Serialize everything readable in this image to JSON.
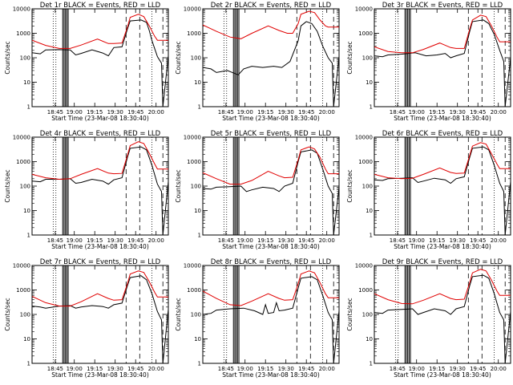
{
  "figure": {
    "background": "#ffffff",
    "black_color": "#000000",
    "red_color": "#e00000"
  },
  "chart_data": [
    {
      "type": "line",
      "title": "Det 1r BLACK = Events, RED = LLD",
      "xlabel": "Start Time (23-Mar-08 18:30:40)",
      "ylabel": "Counts/sec",
      "x_ticks": [
        "18:45",
        "19:00",
        "19:15",
        "19:30",
        "19:45",
        "20:00"
      ],
      "y_ticks": [
        "1",
        "10",
        "100",
        "1000",
        "10000"
      ],
      "yscale": "log",
      "ylim": [
        1,
        10000
      ],
      "series": [
        {
          "color": "#000000",
          "x": [
            0.0,
            0.06,
            0.1,
            0.2,
            0.28,
            0.32,
            0.36,
            0.44,
            0.52,
            0.56,
            0.6,
            0.66,
            0.7,
            0.72,
            0.8,
            0.84,
            0.86,
            0.88,
            0.92,
            0.95,
            0.96,
            1.0
          ],
          "y": [
            160,
            145,
            210,
            215,
            210,
            130,
            150,
            210,
            155,
            120,
            260,
            280,
            1500,
            3200,
            3500,
            2800,
            1300,
            500,
            110,
            60,
            1,
            120
          ]
        },
        {
          "color": "#e00000",
          "x": [
            0.0,
            0.1,
            0.2,
            0.28,
            0.36,
            0.48,
            0.56,
            0.6,
            0.66,
            0.7,
            0.72,
            0.78,
            0.82,
            0.86,
            0.9,
            0.92,
            0.95,
            1.0
          ],
          "y": [
            520,
            320,
            240,
            240,
            330,
            580,
            380,
            380,
            400,
            1800,
            4500,
            6000,
            4800,
            2000,
            750,
            520,
            520,
            520
          ]
        }
      ]
    },
    {
      "type": "line",
      "title": "Det 2r BLACK = Events, RED = LLD",
      "xlabel": "Start Time (23-Mar-08 18:30:40)",
      "ylabel": "Counts/sec",
      "x_ticks": [
        "18:45",
        "19:00",
        "19:15",
        "19:30",
        "19:45",
        "20:00"
      ],
      "y_ticks": [
        "1",
        "10",
        "100",
        "1000",
        "10000"
      ],
      "yscale": "log",
      "ylim": [
        1,
        10000
      ],
      "series": [
        {
          "color": "#000000",
          "x": [
            0.0,
            0.06,
            0.1,
            0.18,
            0.26,
            0.3,
            0.36,
            0.44,
            0.52,
            0.58,
            0.64,
            0.7,
            0.72,
            0.76,
            0.8,
            0.84,
            0.88,
            0.92,
            0.95,
            0.96,
            1.0
          ],
          "y": [
            40,
            35,
            25,
            30,
            20,
            35,
            45,
            40,
            45,
            40,
            70,
            500,
            2000,
            3000,
            2500,
            1200,
            300,
            100,
            60,
            1,
            110
          ]
        },
        {
          "color": "#e00000",
          "x": [
            0.0,
            0.1,
            0.2,
            0.28,
            0.36,
            0.48,
            0.56,
            0.62,
            0.66,
            0.7,
            0.72,
            0.78,
            0.82,
            0.86,
            0.9,
            0.92,
            0.95,
            1.0
          ],
          "y": [
            2200,
            1200,
            700,
            600,
            1000,
            2000,
            1300,
            1000,
            1000,
            2500,
            6000,
            8000,
            7000,
            3500,
            2000,
            1800,
            1800,
            1800
          ]
        }
      ]
    },
    {
      "type": "line",
      "title": "Det 3r BLACK = Events, RED = LLD",
      "xlabel": "Start Time (23-Mar-08 18:30:40)",
      "ylabel": "Counts/sec",
      "x_ticks": [
        "18:45",
        "19:00",
        "19:15",
        "19:30",
        "19:45",
        "20:00"
      ],
      "y_ticks": [
        "1",
        "10",
        "100",
        "1000",
        "10000"
      ],
      "yscale": "log",
      "ylim": [
        1,
        10000
      ],
      "series": [
        {
          "color": "#000000",
          "x": [
            0.0,
            0.06,
            0.1,
            0.2,
            0.3,
            0.38,
            0.46,
            0.52,
            0.56,
            0.6,
            0.66,
            0.7,
            0.72,
            0.8,
            0.84,
            0.88,
            0.92,
            0.95,
            0.96,
            1.0
          ],
          "y": [
            120,
            110,
            130,
            140,
            160,
            120,
            130,
            150,
            100,
            120,
            150,
            1200,
            3000,
            3500,
            2500,
            900,
            200,
            70,
            1,
            100
          ]
        },
        {
          "color": "#e00000",
          "x": [
            0.0,
            0.1,
            0.2,
            0.28,
            0.36,
            0.48,
            0.56,
            0.6,
            0.66,
            0.7,
            0.72,
            0.78,
            0.82,
            0.86,
            0.9,
            0.92,
            0.95,
            1.0
          ],
          "y": [
            280,
            180,
            160,
            160,
            220,
            400,
            260,
            240,
            240,
            1500,
            3500,
            5500,
            4800,
            2000,
            700,
            450,
            450,
            450
          ]
        }
      ]
    },
    {
      "type": "line",
      "title": "Det 4r BLACK = Events, RED = LLD",
      "xlabel": "Start Time (23-Mar-08 18:30:40)",
      "ylabel": "Counts/sec",
      "x_ticks": [
        "18:45",
        "19:00",
        "19:15",
        "19:30",
        "19:45",
        "20:00"
      ],
      "y_ticks": [
        "1",
        "10",
        "100",
        "1000",
        "10000"
      ],
      "yscale": "log",
      "ylim": [
        1,
        10000
      ],
      "series": [
        {
          "color": "#000000",
          "x": [
            0.0,
            0.06,
            0.1,
            0.2,
            0.28,
            0.32,
            0.36,
            0.44,
            0.52,
            0.56,
            0.6,
            0.66,
            0.7,
            0.72,
            0.8,
            0.84,
            0.88,
            0.92,
            0.95,
            0.96,
            1.0
          ],
          "y": [
            160,
            150,
            190,
            190,
            200,
            130,
            140,
            190,
            160,
            120,
            180,
            220,
            1500,
            3500,
            4000,
            3000,
            700,
            120,
            60,
            1,
            150
          ]
        },
        {
          "color": "#e00000",
          "x": [
            0.0,
            0.1,
            0.2,
            0.28,
            0.36,
            0.48,
            0.56,
            0.6,
            0.66,
            0.7,
            0.72,
            0.78,
            0.82,
            0.86,
            0.9,
            0.92,
            0.95,
            1.0
          ],
          "y": [
            300,
            220,
            190,
            200,
            300,
            520,
            340,
            320,
            330,
            1800,
            4500,
            6500,
            5500,
            2200,
            800,
            500,
            500,
            500
          ]
        }
      ]
    },
    {
      "type": "line",
      "title": "Det 5r BLACK = Events, RED = LLD",
      "xlabel": "Start Time (23-Mar-08 18:30:40)",
      "ylabel": "Counts/sec",
      "x_ticks": [
        "18:45",
        "19:00",
        "19:15",
        "19:30",
        "19:45",
        "20:00"
      ],
      "y_ticks": [
        "1",
        "10",
        "100",
        "1000",
        "10000"
      ],
      "yscale": "log",
      "ylim": [
        1,
        10000
      ],
      "series": [
        {
          "color": "#000000",
          "x": [
            0.0,
            0.06,
            0.1,
            0.2,
            0.28,
            0.32,
            0.36,
            0.44,
            0.52,
            0.56,
            0.6,
            0.66,
            0.7,
            0.72,
            0.8,
            0.84,
            0.88,
            0.92,
            0.95,
            0.96,
            1.0
          ],
          "y": [
            80,
            75,
            90,
            95,
            100,
            60,
            70,
            90,
            80,
            60,
            100,
            130,
            1000,
            2500,
            3000,
            2200,
            500,
            100,
            50,
            1,
            90
          ]
        },
        {
          "color": "#e00000",
          "x": [
            0.0,
            0.1,
            0.2,
            0.28,
            0.36,
            0.48,
            0.56,
            0.6,
            0.66,
            0.7,
            0.72,
            0.78,
            0.82,
            0.86,
            0.9,
            0.92,
            0.95,
            1.0
          ],
          "y": [
            350,
            200,
            120,
            120,
            170,
            400,
            260,
            220,
            230,
            1200,
            3000,
            4000,
            3300,
            1500,
            500,
            320,
            320,
            320
          ]
        }
      ]
    },
    {
      "type": "line",
      "title": "Det 6r BLACK = Events, RED = LLD",
      "xlabel": "Start Time (23-Mar-08 18:30:40)",
      "ylabel": "Counts/sec",
      "x_ticks": [
        "18:45",
        "19:00",
        "19:15",
        "19:30",
        "19:45",
        "20:00"
      ],
      "y_ticks": [
        "1",
        "10",
        "100",
        "1000",
        "10000"
      ],
      "yscale": "log",
      "ylim": [
        1,
        10000
      ],
      "series": [
        {
          "color": "#000000",
          "x": [
            0.0,
            0.06,
            0.1,
            0.2,
            0.28,
            0.32,
            0.36,
            0.44,
            0.52,
            0.56,
            0.6,
            0.66,
            0.7,
            0.72,
            0.8,
            0.84,
            0.88,
            0.92,
            0.95,
            0.96,
            1.0
          ],
          "y": [
            180,
            170,
            200,
            210,
            220,
            140,
            160,
            210,
            180,
            130,
            200,
            240,
            1500,
            3500,
            4000,
            3000,
            700,
            130,
            60,
            1,
            150
          ]
        },
        {
          "color": "#e00000",
          "x": [
            0.0,
            0.1,
            0.2,
            0.28,
            0.36,
            0.48,
            0.56,
            0.6,
            0.66,
            0.7,
            0.72,
            0.78,
            0.82,
            0.86,
            0.9,
            0.92,
            0.95,
            1.0
          ],
          "y": [
            300,
            220,
            200,
            210,
            300,
            550,
            360,
            330,
            340,
            1800,
            4300,
            6000,
            5200,
            2100,
            800,
            520,
            520,
            520
          ]
        }
      ]
    },
    {
      "type": "line",
      "title": "Det 7r BLACK = Events, RED = LLD",
      "xlabel": "Start Time (23-Mar-08 18:30:40)",
      "ylabel": "Counts/sec",
      "x_ticks": [
        "18:45",
        "19:00",
        "19:15",
        "19:30",
        "19:45",
        "20:00"
      ],
      "y_ticks": [
        "1",
        "10",
        "100",
        "1000",
        "10000"
      ],
      "yscale": "log",
      "ylim": [
        1,
        10000
      ],
      "series": [
        {
          "color": "#000000",
          "x": [
            0.0,
            0.06,
            0.1,
            0.2,
            0.28,
            0.32,
            0.36,
            0.44,
            0.52,
            0.56,
            0.6,
            0.66,
            0.7,
            0.72,
            0.8,
            0.84,
            0.88,
            0.92,
            0.95,
            0.96,
            1.0
          ],
          "y": [
            220,
            200,
            180,
            220,
            230,
            180,
            200,
            230,
            210,
            180,
            250,
            290,
            1500,
            3200,
            3800,
            2600,
            700,
            130,
            60,
            1,
            160
          ]
        },
        {
          "color": "#e00000",
          "x": [
            0.0,
            0.1,
            0.2,
            0.28,
            0.36,
            0.48,
            0.56,
            0.6,
            0.66,
            0.7,
            0.72,
            0.78,
            0.82,
            0.86,
            0.9,
            0.92,
            0.95,
            1.0
          ],
          "y": [
            550,
            300,
            220,
            220,
            330,
            700,
            450,
            380,
            400,
            1800,
            4500,
            6000,
            5200,
            2200,
            800,
            520,
            520,
            520
          ]
        }
      ]
    },
    {
      "type": "line",
      "title": "Det 8r BLACK = Events, RED = LLD",
      "xlabel": "Start Time (23-Mar-08 18:30:40)",
      "ylabel": "Counts/sec",
      "x_ticks": [
        "18:45",
        "19:00",
        "19:15",
        "19:30",
        "19:45",
        "20:00"
      ],
      "y_ticks": [
        "1",
        "10",
        "100",
        "1000",
        "10000"
      ],
      "yscale": "log",
      "ylim": [
        1,
        10000
      ],
      "series": [
        {
          "color": "#000000",
          "x": [
            0.0,
            0.06,
            0.1,
            0.2,
            0.3,
            0.38,
            0.44,
            0.46,
            0.48,
            0.52,
            0.54,
            0.56,
            0.6,
            0.66,
            0.7,
            0.72,
            0.8,
            0.84,
            0.88,
            0.92,
            0.95,
            0.96,
            1.0
          ],
          "y": [
            100,
            110,
            150,
            170,
            180,
            140,
            100,
            250,
            110,
            120,
            300,
            140,
            150,
            180,
            1200,
            3000,
            3500,
            2600,
            600,
            120,
            60,
            1,
            140
          ]
        },
        {
          "color": "#e00000",
          "x": [
            0.0,
            0.1,
            0.2,
            0.28,
            0.36,
            0.48,
            0.56,
            0.6,
            0.66,
            0.7,
            0.72,
            0.78,
            0.82,
            0.86,
            0.9,
            0.92,
            0.95,
            1.0
          ],
          "y": [
            900,
            450,
            250,
            230,
            350,
            700,
            450,
            380,
            400,
            1800,
            4500,
            6000,
            5000,
            2000,
            700,
            480,
            480,
            480
          ]
        }
      ]
    },
    {
      "type": "line",
      "title": "Det 9r BLACK = Events, RED = LLD",
      "xlabel": "Start Time (23-Mar-08 18:30:40)",
      "ylabel": "Counts/sec",
      "x_ticks": [
        "18:45",
        "19:00",
        "19:15",
        "19:30",
        "19:45",
        "20:00"
      ],
      "y_ticks": [
        "1",
        "10",
        "100",
        "1000",
        "10000"
      ],
      "yscale": "log",
      "ylim": [
        1,
        10000
      ],
      "series": [
        {
          "color": "#000000",
          "x": [
            0.0,
            0.06,
            0.1,
            0.2,
            0.28,
            0.32,
            0.36,
            0.44,
            0.52,
            0.56,
            0.6,
            0.66,
            0.7,
            0.72,
            0.8,
            0.84,
            0.88,
            0.92,
            0.95,
            0.96,
            1.0
          ],
          "y": [
            120,
            110,
            150,
            160,
            170,
            100,
            120,
            170,
            140,
            100,
            170,
            210,
            1500,
            3500,
            4000,
            3000,
            700,
            120,
            60,
            1,
            130
          ]
        },
        {
          "color": "#e00000",
          "x": [
            0.0,
            0.1,
            0.2,
            0.28,
            0.36,
            0.48,
            0.56,
            0.6,
            0.66,
            0.7,
            0.72,
            0.78,
            0.82,
            0.86,
            0.9,
            0.92,
            0.95,
            1.0
          ],
          "y": [
            700,
            400,
            280,
            270,
            380,
            700,
            450,
            400,
            420,
            2000,
            5000,
            7000,
            6000,
            2500,
            900,
            600,
            600,
            600
          ]
        }
      ]
    }
  ]
}
